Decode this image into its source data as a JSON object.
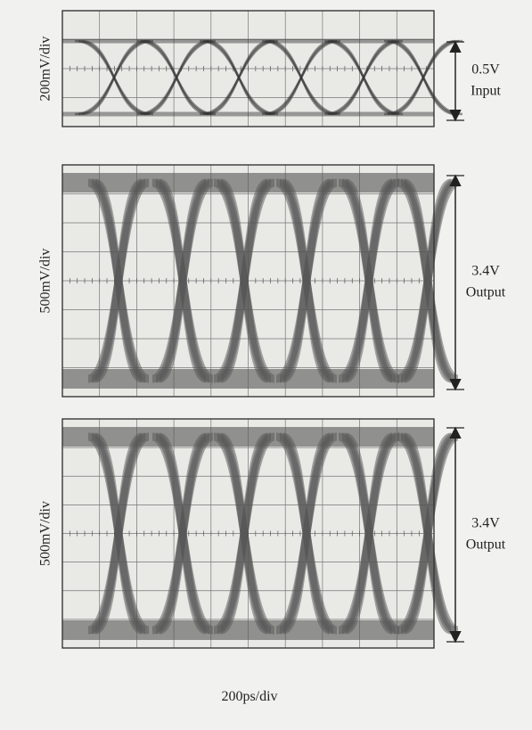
{
  "panels": [
    {
      "y_scale": "200mV/div",
      "amplitude": "0.5V",
      "signal": "Input"
    },
    {
      "y_scale": "500mV/div",
      "amplitude": "3.4V",
      "signal": "Output"
    },
    {
      "y_scale": "500mV/div",
      "amplitude": "3.4V",
      "signal": "Output"
    }
  ],
  "x_scale": "200ps/div"
}
